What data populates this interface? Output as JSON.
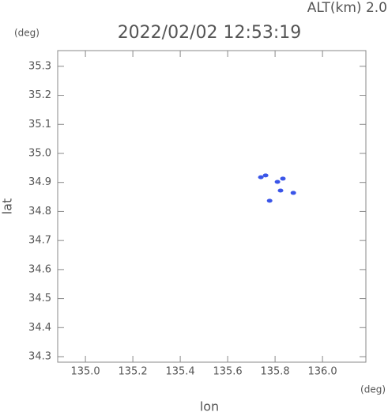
{
  "chart_data": {
    "type": "scatter",
    "title": "2022/02/02 12:53:19",
    "annotation": "ALT(km) 2.0",
    "y_unit": "(deg)",
    "x_unit": "(deg)",
    "x_label": "lon",
    "y_label": "lat",
    "color": "#3a55e8",
    "x": [
      135.74,
      135.76,
      135.81,
      135.823,
      135.833,
      135.777,
      135.877
    ],
    "y": [
      34.918,
      34.924,
      34.902,
      34.872,
      34.913,
      34.837,
      34.864
    ],
    "xlim": [
      134.883,
      136.183
    ],
    "ylim": [
      34.281,
      35.354
    ],
    "xticks": [
      {
        "value": 135.0,
        "label": "135.0"
      },
      135.2,
      135.4,
      135.6,
      135.8,
      {
        "value": 136.0,
        "label": "136.0"
      }
    ],
    "yticks": [
      34.3,
      34.4,
      34.5,
      34.6,
      34.7,
      34.8,
      34.9,
      {
        "value": 35.0,
        "label": "35.0"
      },
      35.1,
      35.2,
      35.3
    ]
  }
}
